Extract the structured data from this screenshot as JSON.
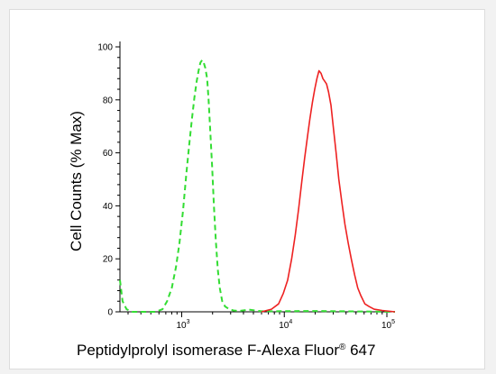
{
  "chart_data": {
    "type": "line",
    "xlabel": "Peptidylprolyl isomerase F-Alexa Fluor",
    "xlabel_reg": "®",
    "xlabel_tail": " 647",
    "ylabel": "Cell Counts (% Max)",
    "xscale": "log",
    "xlim": [
      250,
      120000
    ],
    "ylim": [
      0,
      100
    ],
    "y_ticks": [
      0,
      20,
      40,
      60,
      80,
      100
    ],
    "y_tick_labels": [
      "0",
      "20",
      "40",
      "60",
      "80",
      "100"
    ],
    "x_ticks": [
      {
        "value": 1000,
        "base": "10",
        "exp": "3"
      },
      {
        "value": 10000,
        "base": "10",
        "exp": "4"
      },
      {
        "value": 100000,
        "base": "10",
        "exp": "5"
      }
    ],
    "grid": false,
    "legend": "none",
    "series": [
      {
        "color": "#33dd33",
        "style": "dashed",
        "x": [
          250,
          265,
          290,
          330,
          380,
          430,
          480,
          560,
          650,
          720,
          800,
          880,
          950,
          1030,
          1110,
          1190,
          1260,
          1330,
          1400,
          1460,
          1520,
          1580,
          1640,
          1700,
          1770,
          1830,
          1900,
          1980,
          2060,
          2150,
          2250,
          2350,
          2480,
          2650,
          2900,
          3200,
          3600,
          4500,
          6000,
          20000,
          120000
        ],
        "y": [
          12,
          4,
          1,
          0,
          0,
          0,
          0,
          0,
          1,
          4,
          9,
          17,
          26,
          38,
          52,
          64,
          73,
          81,
          87,
          91,
          94,
          95,
          94,
          92,
          88,
          80,
          68,
          55,
          40,
          27,
          16,
          9,
          4,
          2,
          1,
          0.5,
          0.3,
          0.8,
          0.2,
          0.3,
          0
        ]
      },
      {
        "color": "#ee2222",
        "style": "solid",
        "x": [
          6000,
          7500,
          8800,
          9800,
          10800,
          11800,
          12800,
          13800,
          14800,
          15800,
          16800,
          17800,
          18800,
          19800,
          20800,
          21800,
          22800,
          23800,
          24800,
          25800,
          27000,
          28500,
          30000,
          32000,
          34000,
          36500,
          39000,
          42000,
          45000,
          48500,
          52000,
          56000,
          61000,
          67000,
          75000,
          90000,
          120000
        ],
        "y": [
          0,
          1,
          3,
          7,
          12,
          20,
          29,
          39,
          49,
          58,
          66,
          73,
          79,
          84,
          88,
          91,
          90,
          88,
          87,
          86,
          83,
          78,
          70,
          60,
          50,
          41,
          33,
          26,
          20,
          14,
          9,
          6,
          3,
          2,
          1,
          0.5,
          0
        ]
      }
    ]
  }
}
